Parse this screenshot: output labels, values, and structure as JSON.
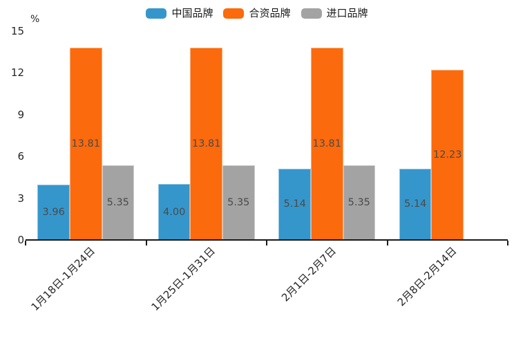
{
  "chart_data": {
    "type": "bar",
    "title": "",
    "unit_label": "%",
    "categories": [
      "1月18日-1月24日",
      "1月25日-1月31日",
      "2月1日-2月7日",
      "2月8日-2月14日"
    ],
    "series": [
      {
        "name": "中国品牌",
        "color": "#3596cb",
        "values": [
          3.96,
          4.0,
          5.14,
          5.14
        ]
      },
      {
        "name": "合资品牌",
        "color": "#fb6a0c",
        "values": [
          13.81,
          13.81,
          13.81,
          12.23
        ]
      },
      {
        "name": "进口品牌",
        "color": "#a3a3a3",
        "values": [
          5.35,
          5.35,
          5.35,
          null
        ]
      }
    ],
    "value_labels": [
      [
        "3.96",
        "13.81",
        "5.35"
      ],
      [
        "4.00",
        "13.81",
        "5.35"
      ],
      [
        "5.14",
        "13.81",
        "5.35"
      ],
      [
        "5.14",
        "12.23",
        null
      ]
    ],
    "y_ticks": [
      0,
      3,
      6,
      9,
      12,
      15
    ],
    "ylim": [
      0,
      15
    ],
    "legend_position": "top-center",
    "grid": false
  }
}
